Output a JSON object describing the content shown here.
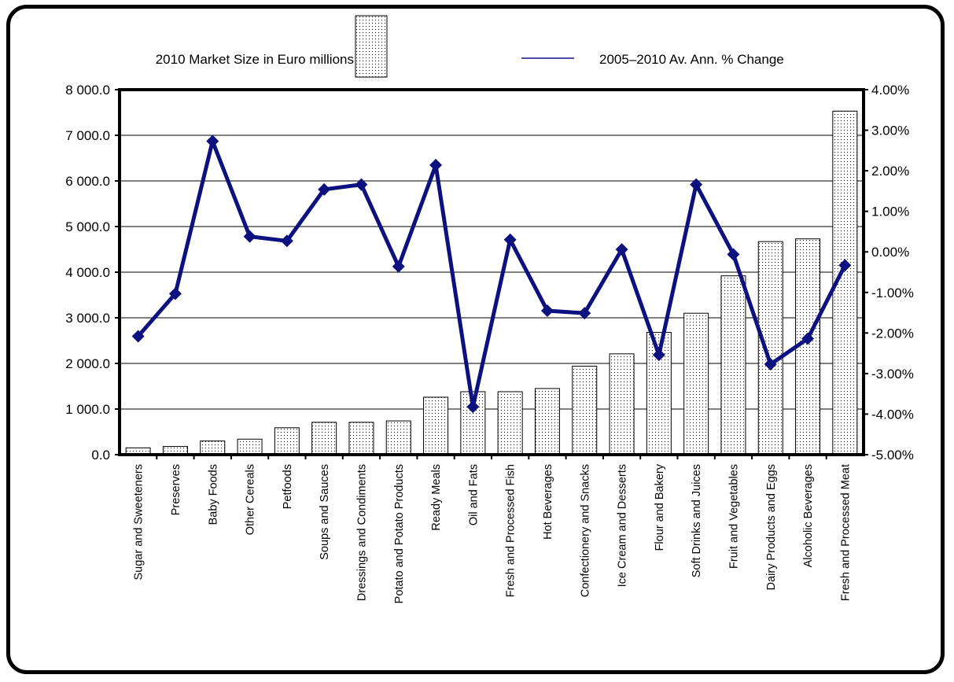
{
  "chart_data": {
    "type": "bar",
    "categories": [
      "Sugar and Sweeteners",
      "Preserves",
      "Baby Foods",
      "Other Cereals",
      "Petfoods",
      "Soups and Sauces",
      "Dressings and Condiments",
      "Potato and Potato Products",
      "Ready Meals",
      "Oil and Fats",
      "Fresh and Processed Fish",
      "Hot Beverages",
      "Confectionery and Snacks",
      "Ice Cream and Desserts",
      "Flour and Bakery",
      "Soft Drinks and Juices",
      "Fruit and Vegetables",
      "Dairy Products and Eggs",
      "Alcoholic Beverages",
      "Fresh and Processed Meat"
    ],
    "series": [
      {
        "name": "2010 Market Size in Euro millions",
        "type": "bar",
        "axis": "left",
        "values": [
          150,
          180,
          300,
          340,
          590,
          710,
          710,
          740,
          1260,
          1380,
          1380,
          1450,
          1940,
          2210,
          2680,
          3100,
          3920,
          4670,
          4730,
          7530
        ]
      },
      {
        "name": "2005–2010 Av. Ann. % Change",
        "type": "line",
        "axis": "right",
        "values": [
          -2.08,
          -1.03,
          2.73,
          0.38,
          0.27,
          1.54,
          1.66,
          -0.36,
          2.14,
          -3.82,
          0.3,
          -1.45,
          -1.51,
          0.06,
          -2.54,
          1.66,
          -0.06,
          -2.77,
          -2.14,
          -0.33
        ]
      }
    ],
    "ylim": [
      0,
      8000
    ],
    "yticks": [
      "0.0",
      "1 000.0",
      "2 000.0",
      "3 000.0",
      "4 000.0",
      "5 000.0",
      "6 000.0",
      "7 000.0",
      "8 000.0"
    ],
    "y2lim": [
      -5,
      4
    ],
    "y2ticks": [
      "-5.00%",
      "-4.00%",
      "-3.00%",
      "-2.00%",
      "-1.00%",
      "0.00%",
      "1.00%",
      "2.00%",
      "3.00%",
      "4.00%"
    ],
    "grid": true,
    "legend_position": "top",
    "colors": {
      "line": "#0d1180",
      "bar_fill": "#ffffff",
      "bar_dots": "#000000",
      "border": "#000000"
    }
  }
}
